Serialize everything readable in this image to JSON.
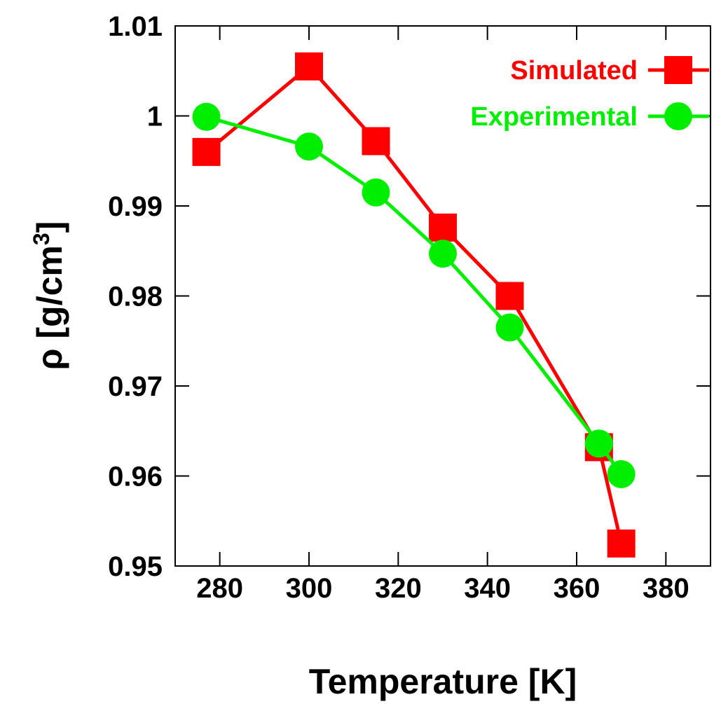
{
  "chart_data": {
    "type": "line",
    "xlabel": "Temperature [K]",
    "ylabel": {
      "base": "ρ [g/cm",
      "superscript": "3",
      "close": "]"
    },
    "xlim": [
      270,
      390
    ],
    "ylim": [
      0.95,
      1.01
    ],
    "x_ticks": [
      "280",
      "300",
      "320",
      "340",
      "360",
      "380"
    ],
    "y_ticks": [
      "0.95",
      "0.96",
      "0.97",
      "0.98",
      "0.99",
      "1",
      "1.01"
    ],
    "grid": false,
    "legend_position": "top-right",
    "series": [
      {
        "name": "Simulated",
        "color": "#ff0000",
        "marker": "square",
        "x": [
          277,
          300,
          315,
          330,
          345,
          365,
          370
        ],
        "y": [
          0.996,
          1.0055,
          0.9972,
          0.9876,
          0.98,
          0.9632,
          0.9525
        ]
      },
      {
        "name": "Experimental",
        "color": "#00ee00",
        "marker": "circle",
        "x": [
          277,
          300,
          315,
          330,
          345,
          365,
          370
        ],
        "y": [
          0.9999,
          0.9966,
          0.9915,
          0.9847,
          0.9765,
          0.9636,
          0.9602
        ]
      }
    ]
  }
}
